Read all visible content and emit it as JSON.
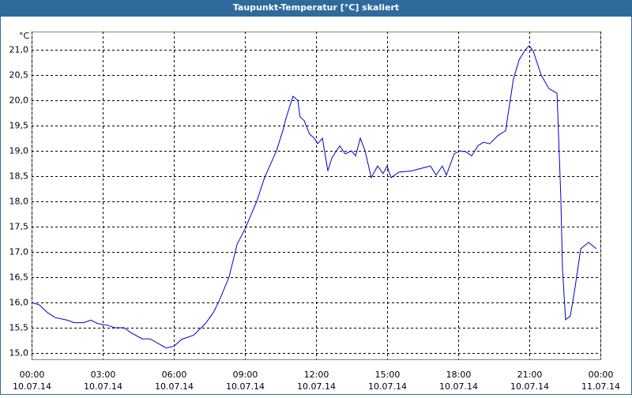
{
  "chart_data": {
    "type": "line",
    "title": "Taupunkt-Temperatur [°C] skaliert",
    "y_unit": "°C",
    "x": [
      0,
      0.33,
      0.67,
      1.0,
      1.5,
      1.8,
      2.2,
      2.5,
      2.8,
      3.2,
      3.5,
      3.9,
      4.2,
      4.67,
      5.0,
      5.67,
      6.0,
      6.33,
      6.83,
      7.33,
      7.67,
      7.93,
      8.33,
      8.67,
      9.0,
      9.5,
      9.83,
      10.33,
      10.6,
      10.73,
      11.03,
      11.23,
      11.33,
      11.5,
      11.73,
      11.93,
      12.07,
      12.27,
      12.5,
      12.67,
      13.0,
      13.23,
      13.5,
      13.67,
      13.87,
      14.07,
      14.33,
      14.6,
      14.83,
      15.0,
      15.17,
      15.5,
      16.0,
      16.5,
      16.83,
      17.07,
      17.33,
      17.5,
      17.83,
      18.07,
      18.33,
      18.57,
      18.83,
      19.07,
      19.33,
      19.67,
      20.0,
      20.33,
      20.57,
      20.83,
      21.0,
      21.17,
      21.5,
      21.83,
      22.17,
      22.33,
      22.4,
      22.53,
      22.73,
      22.9,
      23.17,
      23.5,
      23.83
    ],
    "series": [
      {
        "name": "Taupunkt-Temperatur",
        "color": "#0000c8",
        "values": [
          16.0,
          15.95,
          15.8,
          15.7,
          15.65,
          15.6,
          15.6,
          15.65,
          15.58,
          15.55,
          15.5,
          15.5,
          15.4,
          15.28,
          15.28,
          15.1,
          15.13,
          15.27,
          15.35,
          15.58,
          15.8,
          16.05,
          16.5,
          17.15,
          17.45,
          18.0,
          18.47,
          19.0,
          19.4,
          19.64,
          20.08,
          20.0,
          19.67,
          19.6,
          19.33,
          19.25,
          19.14,
          19.25,
          18.6,
          18.86,
          19.1,
          18.94,
          19.0,
          18.9,
          19.25,
          19.0,
          18.47,
          18.7,
          18.55,
          18.7,
          18.47,
          18.58,
          18.6,
          18.66,
          18.7,
          18.52,
          18.7,
          18.52,
          18.94,
          19.0,
          18.98,
          18.9,
          19.1,
          19.17,
          19.14,
          19.3,
          19.4,
          20.42,
          20.8,
          21.0,
          21.08,
          20.97,
          20.5,
          20.23,
          20.14,
          18.08,
          16.67,
          15.66,
          15.73,
          16.2,
          17.06,
          17.19,
          17.06
        ]
      }
    ],
    "xlim": [
      0,
      24
    ],
    "xticks": [
      {
        "value": 0,
        "label": "00:00"
      },
      {
        "value": 3,
        "label": "03:00"
      },
      {
        "value": 6,
        "label": "06:00"
      },
      {
        "value": 9,
        "label": "09:00"
      },
      {
        "value": 12,
        "label": "12:00"
      },
      {
        "value": 15,
        "label": "15:00"
      },
      {
        "value": 18,
        "label": "18:00"
      },
      {
        "value": 21,
        "label": "21:00"
      },
      {
        "value": 24,
        "label": "00:00"
      }
    ],
    "xtick_dates": [
      "10.07.14",
      "10.07.14",
      "10.07.14",
      "10.07.14",
      "10.07.14",
      "10.07.14",
      "10.07.14",
      "10.07.14",
      "11.07.14"
    ],
    "ylim": [
      14.875,
      21.36
    ],
    "yticks": [
      {
        "value": 15,
        "label": "15,0"
      },
      {
        "value": 15.5,
        "label": "15,5"
      },
      {
        "value": 16,
        "label": "16,0"
      },
      {
        "value": 16.5,
        "label": "16,5"
      },
      {
        "value": 17,
        "label": "17,0"
      },
      {
        "value": 17.5,
        "label": "17,5"
      },
      {
        "value": 18,
        "label": "18,0"
      },
      {
        "value": 18.5,
        "label": "18,5"
      },
      {
        "value": 19,
        "label": "19,0"
      },
      {
        "value": 19.5,
        "label": "19,5"
      },
      {
        "value": 20,
        "label": "20,0"
      },
      {
        "value": 20.5,
        "label": "20,5"
      },
      {
        "value": 21,
        "label": "21,0"
      }
    ],
    "grid": true
  }
}
